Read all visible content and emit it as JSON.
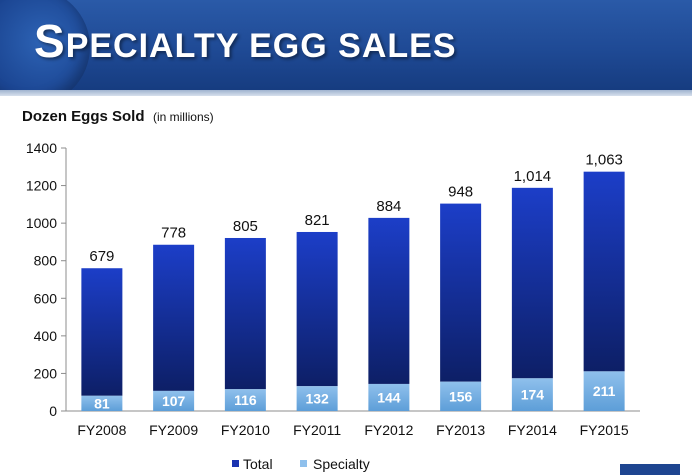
{
  "header": {
    "title_first_letter": "S",
    "title_rest": "PECIALTY EGG SALES"
  },
  "subtitle": {
    "main": "Dozen Eggs Sold",
    "unit": "(in millions)"
  },
  "colors": {
    "total": "#1c3ec8",
    "specialty": "#8fc0ec",
    "banner": "#1f4a95"
  },
  "chart_data": {
    "type": "bar",
    "stacked": true,
    "title": "Dozen Eggs Sold (in millions)",
    "categories": [
      "FY2008",
      "FY2009",
      "FY2010",
      "FY2011",
      "FY2012",
      "FY2013",
      "FY2014",
      "FY2015"
    ],
    "series": [
      {
        "name": "Specialty",
        "values": [
          81,
          107,
          116,
          132,
          144,
          156,
          174,
          211
        ],
        "labels": [
          "81",
          "107",
          "116",
          "132",
          "144",
          "156",
          "174",
          "211"
        ]
      },
      {
        "name": "Total",
        "values": [
          679,
          778,
          805,
          821,
          884,
          948,
          1014,
          1063
        ],
        "labels": [
          "679",
          "778",
          "805",
          "821",
          "884",
          "948",
          "1,014",
          "1,063"
        ]
      }
    ],
    "ylim": [
      0,
      1400
    ],
    "yticks": [
      0,
      200,
      400,
      600,
      800,
      1000,
      1200,
      1400
    ],
    "grid": false,
    "legend_position": "bottom"
  }
}
